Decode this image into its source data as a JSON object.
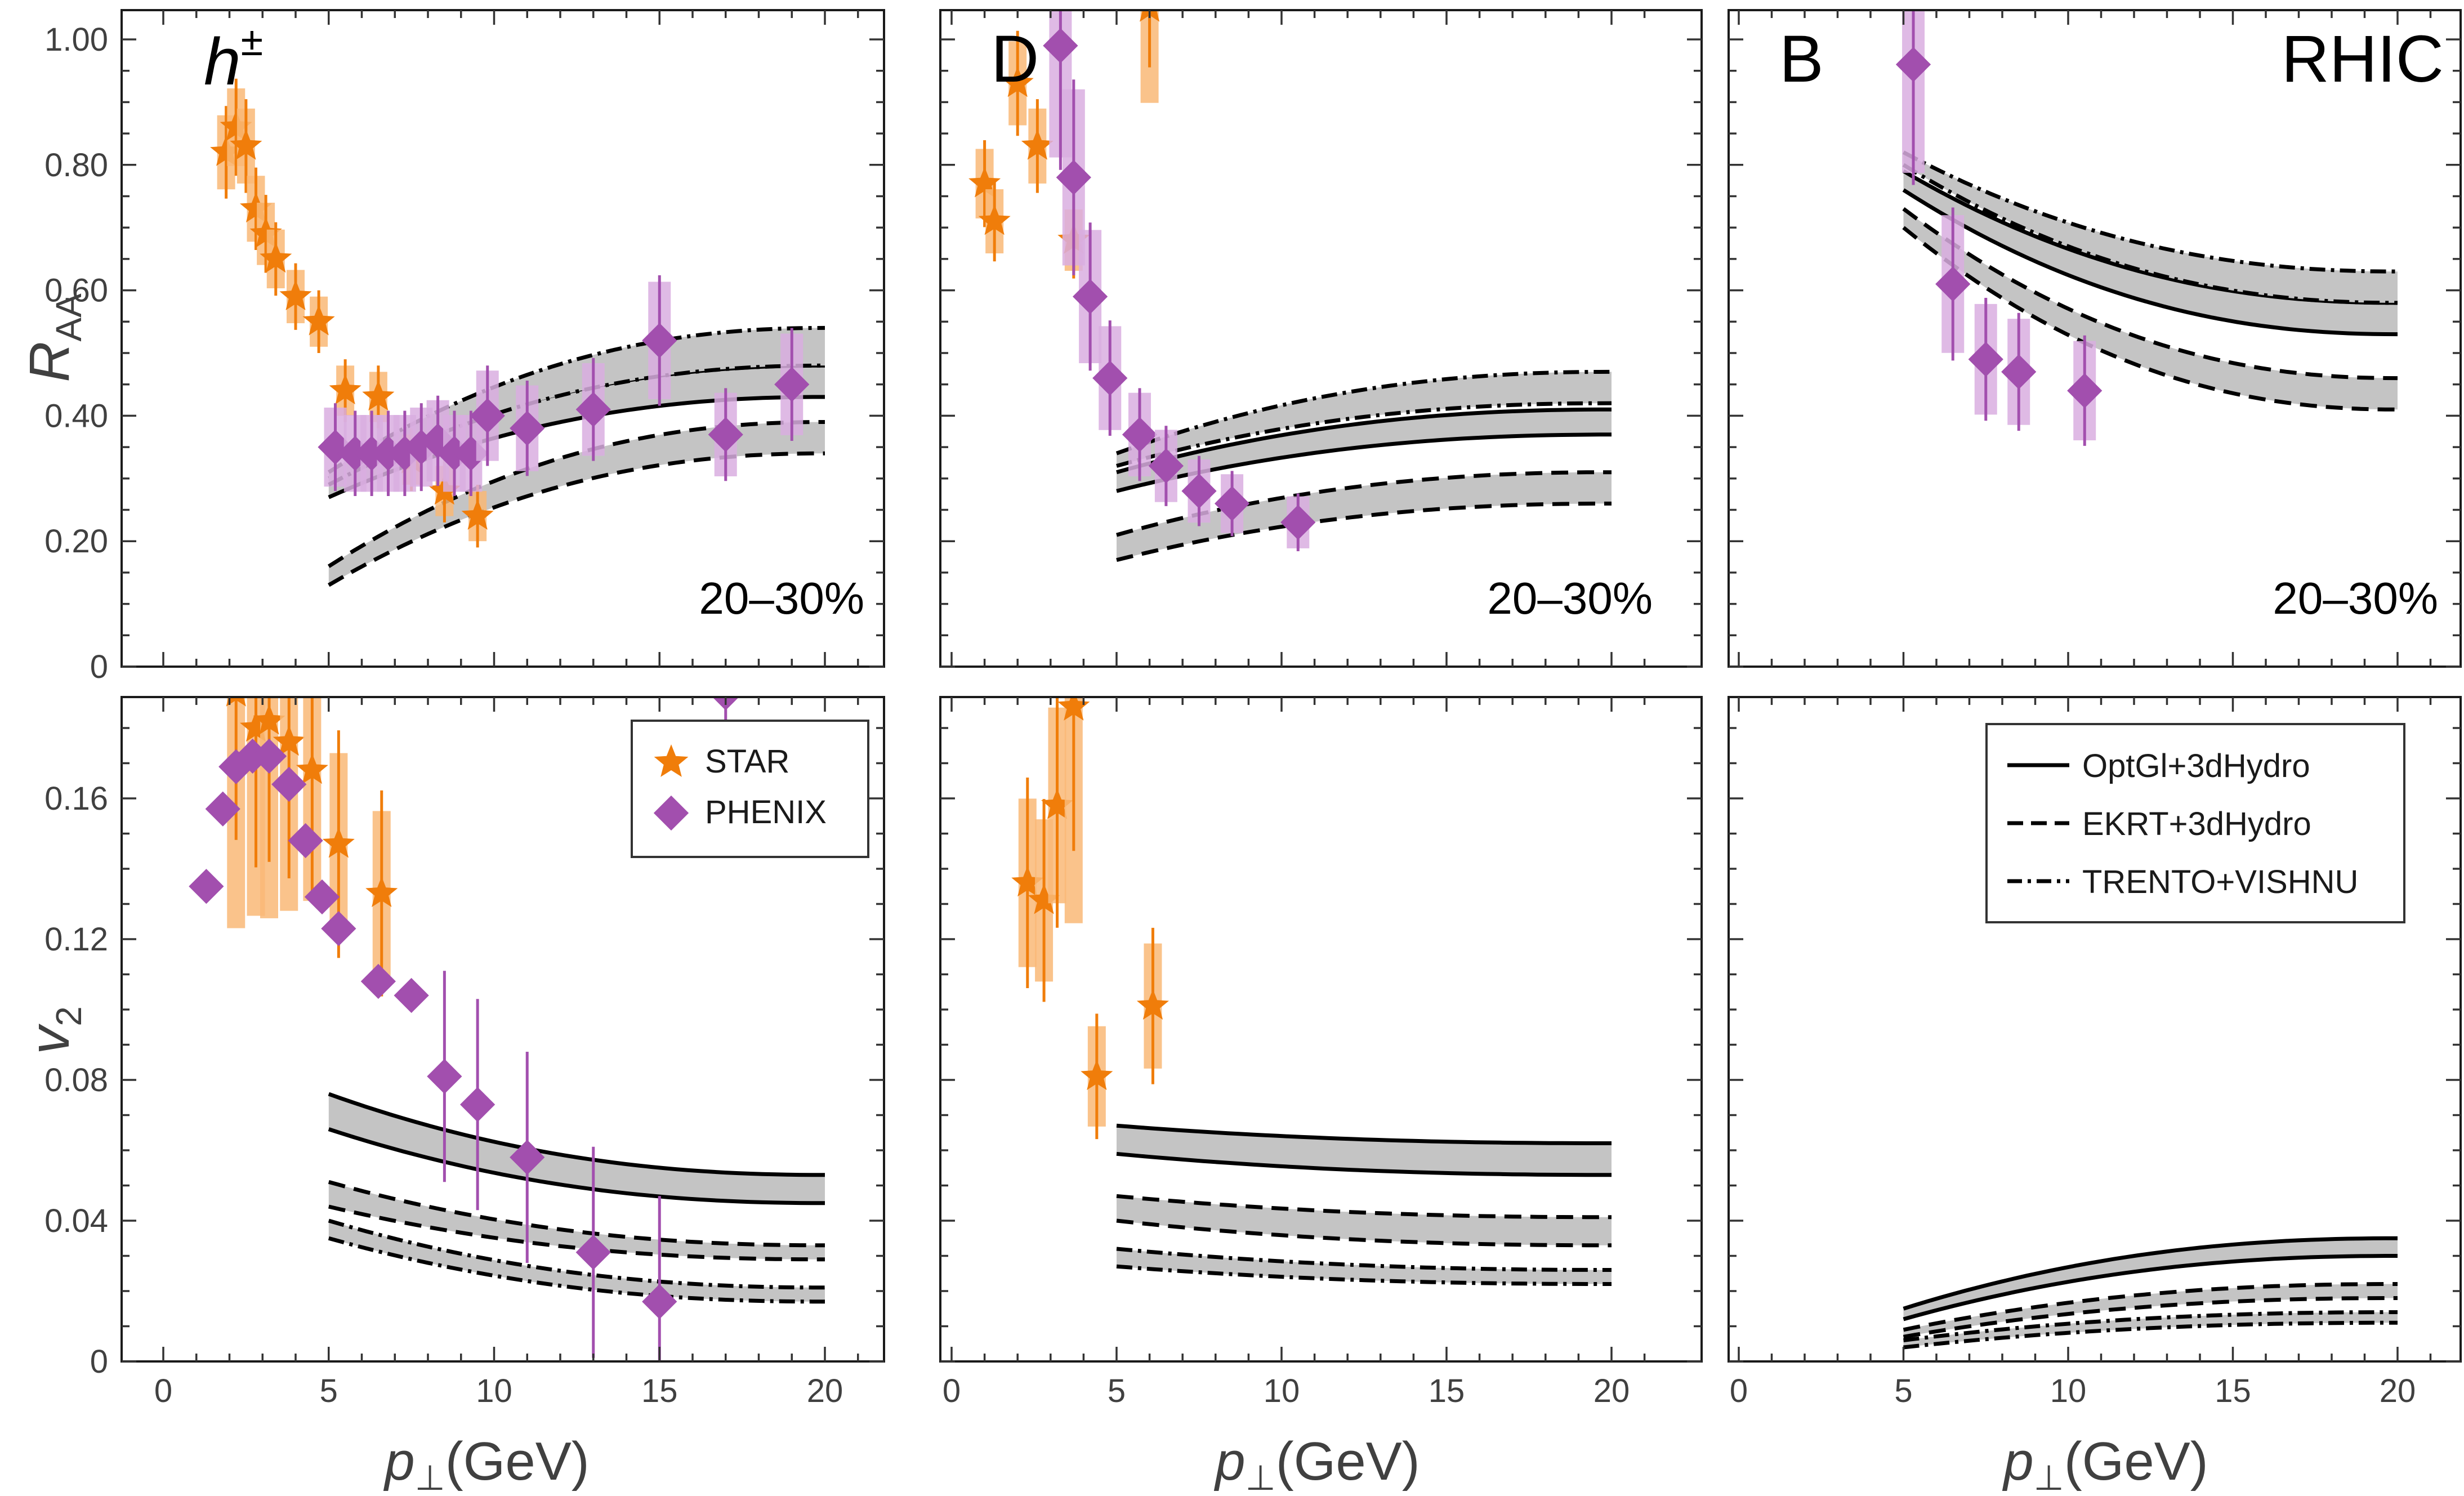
{
  "colors": {
    "star": "#f07d0a",
    "star_box": "#f9b877",
    "phenix": "#a24fae",
    "phenix_box": "#d9aee0",
    "band": "#c4c4c4",
    "curve": "#000000"
  },
  "axes": {
    "x_label": "(GeV)",
    "x_sym": "p",
    "x_sub": "⊥",
    "y_top_label": "R",
    "y_top_sub": "AA",
    "y_bottom_label": "v",
    "y_bottom_sub": "2",
    "x_ticks": [
      "0",
      "5",
      "10",
      "15",
      "20"
    ],
    "raa_ticks": [
      "0",
      "0.20",
      "0.40",
      "0.60",
      "0.80",
      "1.00"
    ],
    "v2_ticks": [
      "0",
      "0.04",
      "0.08",
      "0.12",
      "0.16"
    ]
  },
  "panel_labels": {
    "h": "h",
    "h_sup": "±",
    "d": "D",
    "b": "B",
    "rhic": "RHIC"
  },
  "centrality": "20–30%",
  "legend_data": {
    "star": "STAR",
    "phenix": "PHENIX"
  },
  "legend_models": {
    "opt": "OptGl+3dHydro",
    "ekrt": "EKRT+3dHydro",
    "trento": "TRENTO+VISHNU"
  },
  "chart_data": [
    {
      "panel": "h-raa",
      "type": "scatter",
      "xlim": [
        -1,
        22
      ],
      "ylim": [
        0,
        1.05
      ],
      "models": [
        {
          "model": "opt",
          "x": [
            5,
            20
          ],
          "lower": [
            0.27,
            0.43
          ],
          "upper": [
            0.3,
            0.48
          ]
        },
        {
          "model": "ekrt",
          "x": [
            5,
            20
          ],
          "lower": [
            0.13,
            0.34
          ],
          "upper": [
            0.16,
            0.39
          ]
        },
        {
          "model": "trento",
          "x": [
            5,
            20
          ],
          "lower": [
            0.29,
            0.48
          ],
          "upper": [
            0.31,
            0.54
          ]
        }
      ],
      "star": [
        [
          1.9,
          0.82
        ],
        [
          2.2,
          0.86
        ],
        [
          2.5,
          0.83
        ],
        [
          2.8,
          0.73
        ],
        [
          3.1,
          0.69
        ],
        [
          3.4,
          0.65
        ],
        [
          4.0,
          0.59
        ],
        [
          4.7,
          0.55
        ],
        [
          5.5,
          0.44
        ],
        [
          6.5,
          0.43
        ],
        [
          7.5,
          0.33
        ],
        [
          8.5,
          0.28
        ],
        [
          9.5,
          0.24
        ]
      ],
      "phenix": [
        [
          5.2,
          0.35
        ],
        [
          5.8,
          0.34
        ],
        [
          6.3,
          0.34
        ],
        [
          6.8,
          0.34
        ],
        [
          7.3,
          0.34
        ],
        [
          7.8,
          0.35
        ],
        [
          8.3,
          0.36
        ],
        [
          8.8,
          0.34
        ],
        [
          9.3,
          0.34
        ],
        [
          9.8,
          0.4
        ],
        [
          11,
          0.38
        ],
        [
          13,
          0.41
        ],
        [
          15,
          0.52
        ],
        [
          17,
          0.37
        ],
        [
          19,
          0.45
        ]
      ]
    },
    {
      "panel": "d-raa",
      "type": "scatter",
      "xlim": [
        -1,
        22
      ],
      "ylim": [
        0,
        1.05
      ],
      "models": [
        {
          "model": "opt",
          "x": [
            5,
            20
          ],
          "lower": [
            0.28,
            0.37
          ],
          "upper": [
            0.31,
            0.41
          ]
        },
        {
          "model": "ekrt",
          "x": [
            5,
            20
          ],
          "lower": [
            0.17,
            0.26
          ],
          "upper": [
            0.21,
            0.31
          ]
        },
        {
          "model": "trento",
          "x": [
            5,
            20
          ],
          "lower": [
            0.32,
            0.42
          ],
          "upper": [
            0.34,
            0.47
          ]
        }
      ],
      "star": [
        [
          1.0,
          0.77
        ],
        [
          1.3,
          0.71
        ],
        [
          2.0,
          0.93
        ],
        [
          2.6,
          0.83
        ],
        [
          3.7,
          0.68
        ],
        [
          6.0,
          1.05
        ]
      ],
      "phenix": [
        [
          3.3,
          0.99
        ],
        [
          3.7,
          0.78
        ],
        [
          4.2,
          0.59
        ],
        [
          4.8,
          0.46
        ],
        [
          5.7,
          0.37
        ],
        [
          6.5,
          0.32
        ],
        [
          7.5,
          0.28
        ],
        [
          8.5,
          0.26
        ],
        [
          10.5,
          0.23
        ]
      ]
    },
    {
      "panel": "b-raa",
      "type": "scatter",
      "xlim": [
        -1,
        22
      ],
      "ylim": [
        0,
        1.05
      ],
      "models": [
        {
          "model": "opt",
          "x": [
            5,
            20
          ],
          "lower": [
            0.76,
            0.53
          ],
          "upper": [
            0.79,
            0.58
          ]
        },
        {
          "model": "ekrt",
          "x": [
            5,
            20
          ],
          "lower": [
            0.7,
            0.41
          ],
          "upper": [
            0.73,
            0.46
          ]
        },
        {
          "model": "trento",
          "x": [
            5,
            20
          ],
          "lower": [
            0.8,
            0.58
          ],
          "upper": [
            0.82,
            0.63
          ]
        }
      ],
      "star": [],
      "phenix": [
        [
          5.3,
          0.96
        ],
        [
          6.5,
          0.61
        ],
        [
          7.5,
          0.49
        ],
        [
          8.5,
          0.47
        ],
        [
          10.5,
          0.44
        ]
      ]
    },
    {
      "panel": "h-v2",
      "type": "scatter",
      "xlim": [
        -1,
        22
      ],
      "ylim": [
        0,
        0.19
      ],
      "models": [
        {
          "model": "opt",
          "x": [
            5,
            20
          ],
          "lower": [
            0.066,
            0.045
          ],
          "upper": [
            0.076,
            0.053
          ]
        },
        {
          "model": "ekrt",
          "x": [
            5,
            20
          ],
          "lower": [
            0.044,
            0.029
          ],
          "upper": [
            0.051,
            0.033
          ]
        },
        {
          "model": "trento",
          "x": [
            5,
            20
          ],
          "lower": [
            0.035,
            0.017
          ],
          "upper": [
            0.04,
            0.021
          ]
        }
      ],
      "star": [
        [
          2.2,
          0.19
        ],
        [
          2.8,
          0.18
        ],
        [
          3.2,
          0.182
        ],
        [
          3.8,
          0.176
        ],
        [
          4.5,
          0.168
        ],
        [
          5.3,
          0.147
        ],
        [
          6.6,
          0.133
        ]
      ],
      "phenix": [
        [
          1.3,
          0.135
        ],
        [
          1.8,
          0.157
        ],
        [
          2.2,
          0.169
        ],
        [
          2.7,
          0.172
        ],
        [
          3.2,
          0.172
        ],
        [
          3.8,
          0.164
        ],
        [
          4.3,
          0.148
        ],
        [
          4.8,
          0.132
        ],
        [
          5.3,
          0.123
        ],
        [
          6.5,
          0.108
        ],
        [
          7.5,
          0.104
        ],
        [
          8.5,
          0.081
        ],
        [
          9.5,
          0.073
        ],
        [
          11,
          0.058
        ],
        [
          13,
          0.031
        ],
        [
          15,
          0.017
        ],
        [
          17,
          0.19
        ]
      ]
    },
    {
      "panel": "d-v2",
      "type": "scatter",
      "xlim": [
        -1,
        22
      ],
      "ylim": [
        0,
        0.19
      ],
      "models": [
        {
          "model": "opt",
          "x": [
            5,
            20
          ],
          "lower": [
            0.059,
            0.053
          ],
          "upper": [
            0.067,
            0.062
          ]
        },
        {
          "model": "ekrt",
          "x": [
            5,
            20
          ],
          "lower": [
            0.04,
            0.033
          ],
          "upper": [
            0.047,
            0.041
          ]
        },
        {
          "model": "trento",
          "x": [
            5,
            20
          ],
          "lower": [
            0.027,
            0.022
          ],
          "upper": [
            0.032,
            0.026
          ]
        }
      ],
      "star": [
        [
          2.3,
          0.136
        ],
        [
          2.8,
          0.131
        ],
        [
          3.2,
          0.158
        ],
        [
          3.7,
          0.186
        ],
        [
          4.4,
          0.081
        ],
        [
          6.1,
          0.101
        ]
      ],
      "phenix": []
    },
    {
      "panel": "b-v2",
      "type": "scatter",
      "xlim": [
        -1,
        22
      ],
      "ylim": [
        0,
        0.19
      ],
      "models": [
        {
          "model": "opt",
          "x": [
            5,
            20
          ],
          "lower": [
            0.012,
            0.03
          ],
          "upper": [
            0.015,
            0.035
          ]
        },
        {
          "model": "ekrt",
          "x": [
            5,
            20
          ],
          "lower": [
            0.007,
            0.018
          ],
          "upper": [
            0.009,
            0.022
          ]
        },
        {
          "model": "trento",
          "x": [
            5,
            20
          ],
          "lower": [
            0.004,
            0.011
          ],
          "upper": [
            0.006,
            0.014
          ]
        }
      ],
      "star": [],
      "phenix": []
    }
  ]
}
